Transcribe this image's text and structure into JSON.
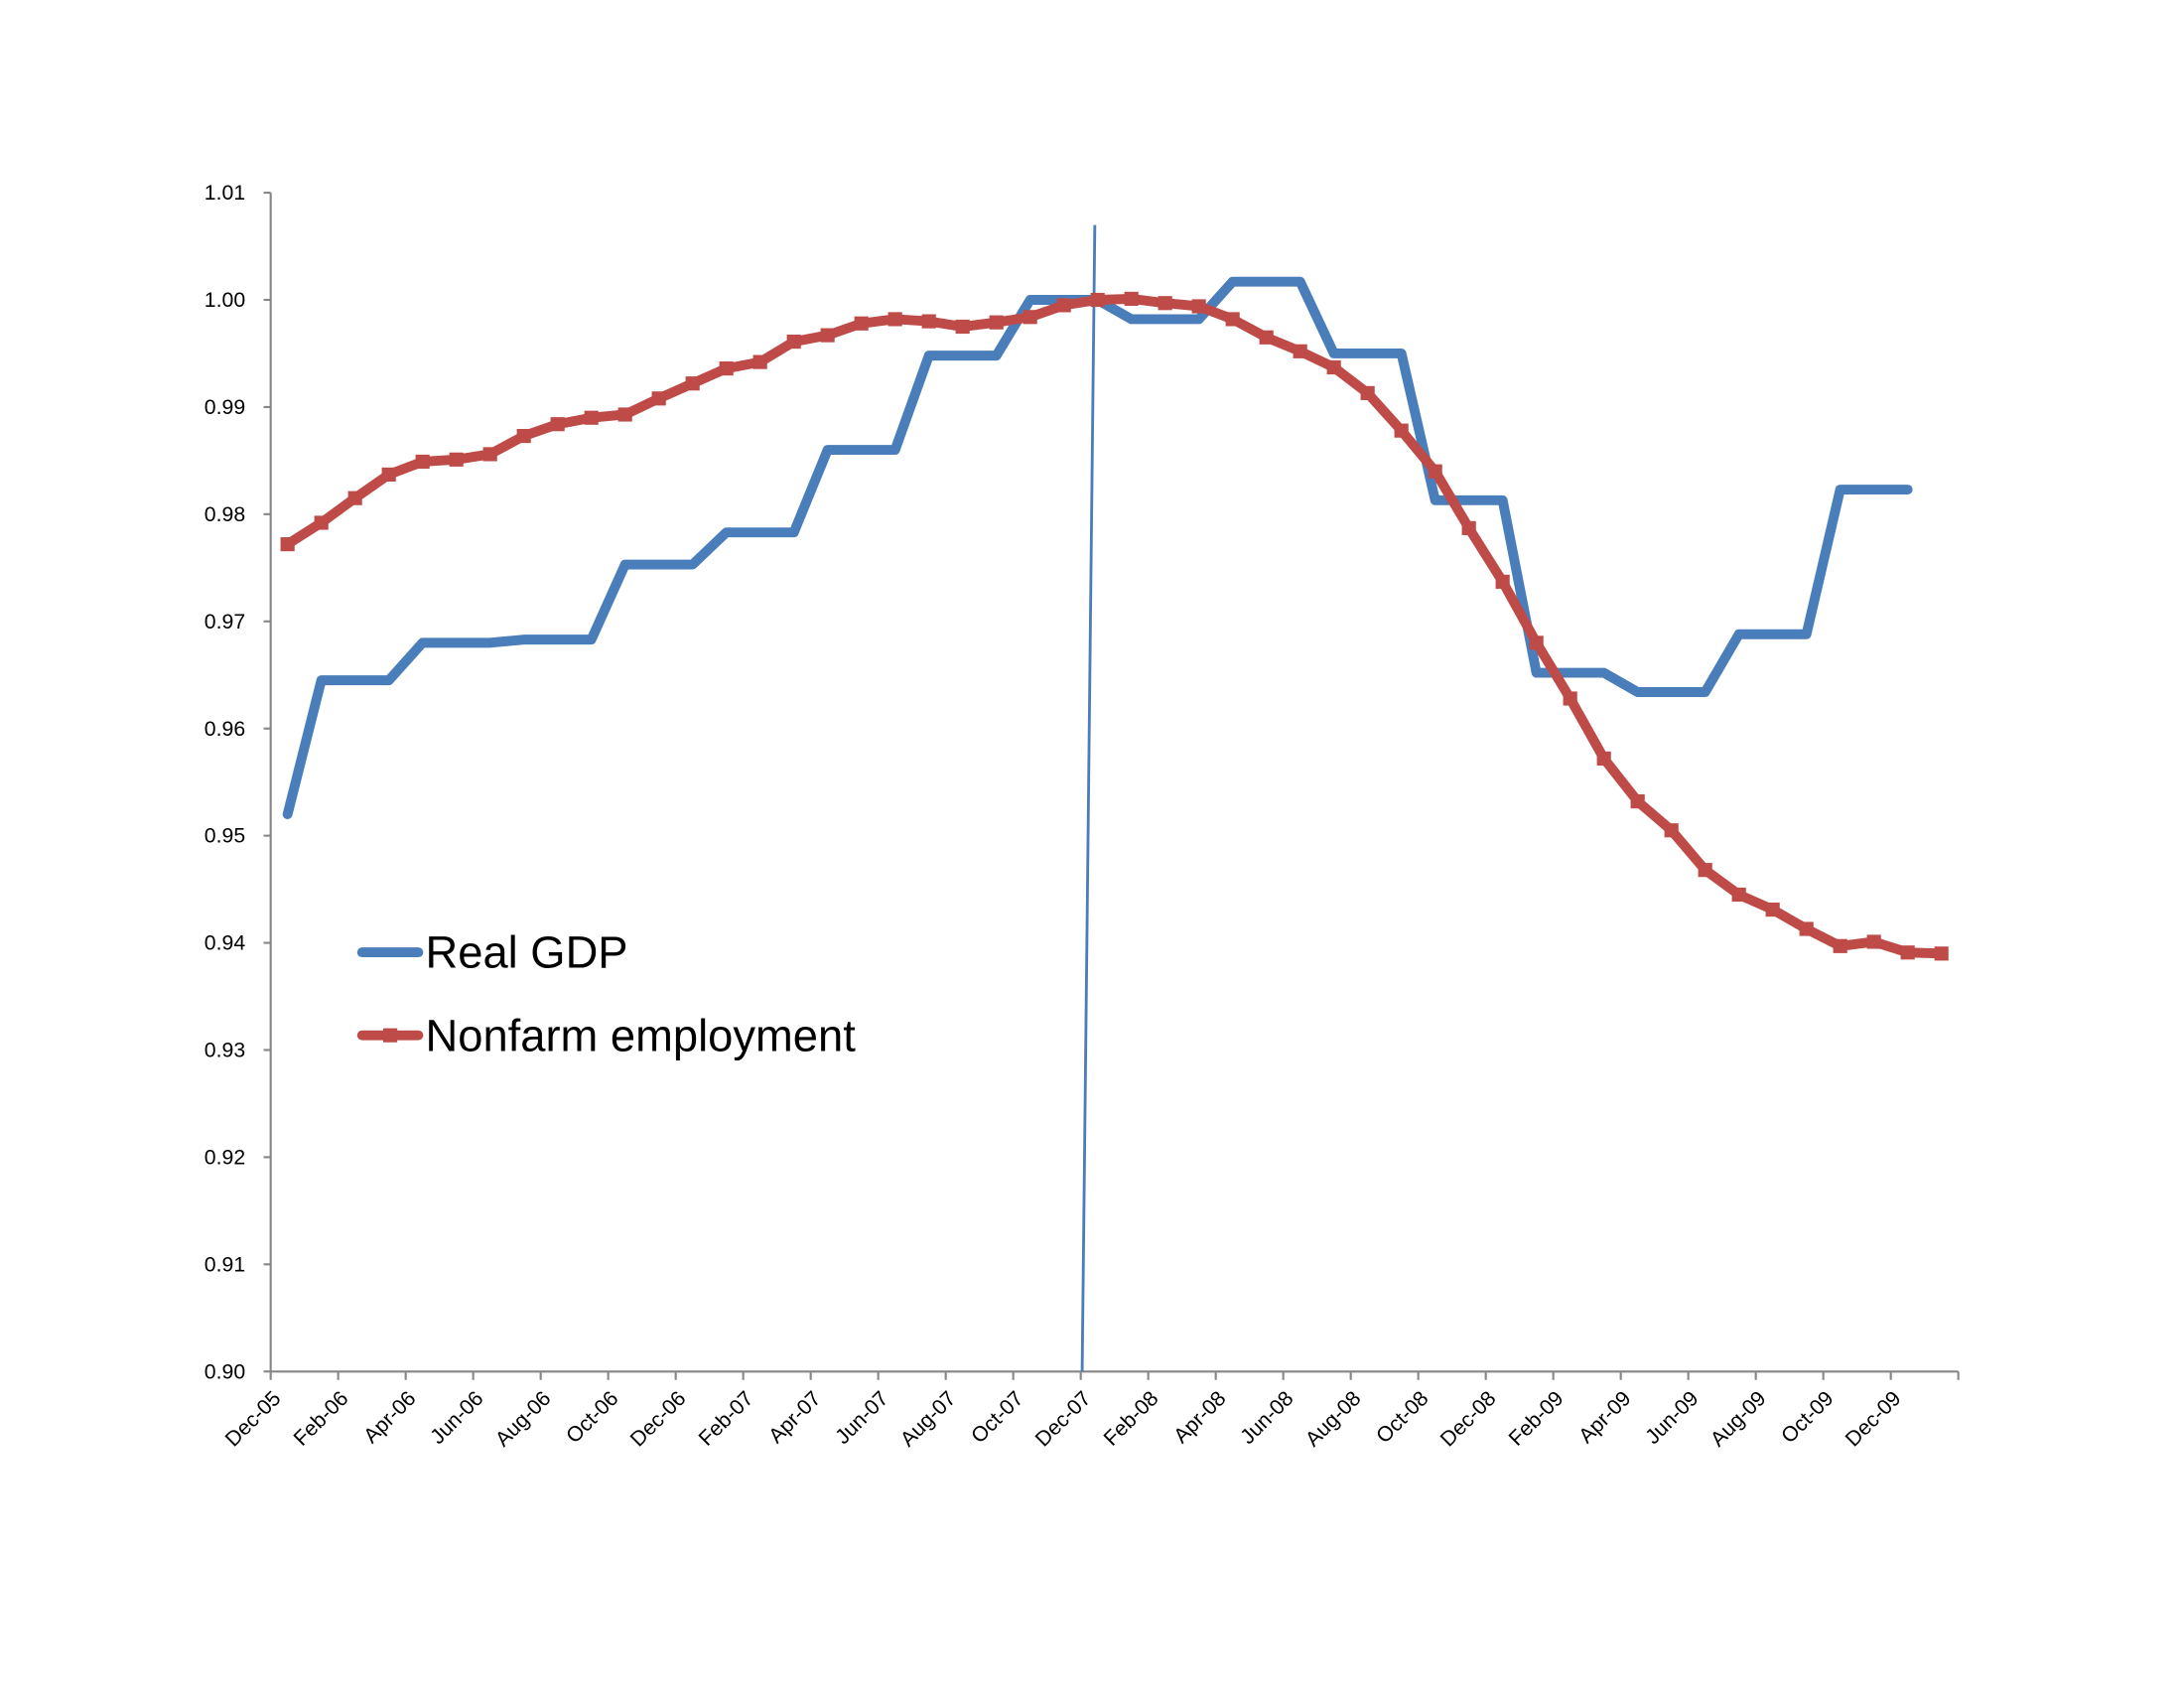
{
  "chart_data": {
    "type": "line",
    "title": "",
    "xlabel": "",
    "ylabel": "",
    "ylim": [
      0.9,
      1.01
    ],
    "yticks": [
      "0.90",
      "0.91",
      "0.92",
      "0.93",
      "0.94",
      "0.95",
      "0.96",
      "0.97",
      "0.98",
      "0.99",
      "1.00",
      "1.01"
    ],
    "xtick_labels": [
      "Dec-05",
      "Feb-06",
      "Apr-06",
      "Jun-06",
      "Aug-06",
      "Oct-06",
      "Dec-06",
      "Feb-07",
      "Apr-07",
      "Jun-07",
      "Aug-07",
      "Oct-07",
      "Dec-07",
      "Feb-08",
      "Apr-08",
      "Jun-08",
      "Aug-08",
      "Oct-08",
      "Dec-08",
      "Feb-09",
      "Apr-09",
      "Jun-09",
      "Aug-09",
      "Oct-09",
      "Dec-09"
    ],
    "x": [
      "Dec-05",
      "Jan-06",
      "Feb-06",
      "Mar-06",
      "Apr-06",
      "May-06",
      "Jun-06",
      "Jul-06",
      "Aug-06",
      "Sep-06",
      "Oct-06",
      "Nov-06",
      "Dec-06",
      "Jan-07",
      "Feb-07",
      "Mar-07",
      "Apr-07",
      "May-07",
      "Jun-07",
      "Jul-07",
      "Aug-07",
      "Sep-07",
      "Oct-07",
      "Nov-07",
      "Dec-07",
      "Jan-08",
      "Feb-08",
      "Mar-08",
      "Apr-08",
      "May-08",
      "Jun-08",
      "Jul-08",
      "Aug-08",
      "Sep-08",
      "Oct-08",
      "Nov-08",
      "Dec-08",
      "Jan-09",
      "Feb-09",
      "Mar-09",
      "Apr-09",
      "May-09",
      "Jun-09",
      "Jul-09",
      "Aug-09",
      "Sep-09",
      "Oct-09",
      "Nov-09",
      "Dec-09",
      "Jan-10"
    ],
    "series": [
      {
        "name": "Real GDP",
        "color": "#4a7ebb",
        "marker": "none",
        "values": [
          0.952,
          0.9645,
          0.9645,
          0.9645,
          0.968,
          0.968,
          0.968,
          0.9683,
          0.9683,
          0.9683,
          0.9753,
          0.9753,
          0.9753,
          0.9783,
          0.9783,
          0.9783,
          0.986,
          0.986,
          0.986,
          0.9948,
          0.9948,
          0.9948,
          1.0,
          1.0,
          1.0,
          0.9982,
          0.9982,
          0.9982,
          1.0017,
          1.0017,
          1.0017,
          0.995,
          0.995,
          0.995,
          0.9813,
          0.9813,
          0.9813,
          0.9652,
          0.9652,
          0.9652,
          0.9634,
          0.9634,
          0.9634,
          0.9688,
          0.9688,
          0.9688,
          0.9823,
          0.9823,
          0.9823,
          null
        ]
      },
      {
        "name": "Nonfarm employment",
        "color": "#be4b48",
        "marker": "square",
        "values": [
          0.9772,
          0.9792,
          0.9815,
          0.9837,
          0.9849,
          0.9851,
          0.9856,
          0.9873,
          0.9884,
          0.989,
          0.9893,
          0.9908,
          0.9922,
          0.9936,
          0.9942,
          0.9961,
          0.9967,
          0.9978,
          0.9982,
          0.998,
          0.9975,
          0.9979,
          0.9984,
          0.9995,
          1.0,
          1.0001,
          0.9997,
          0.9994,
          0.9982,
          0.9965,
          0.9952,
          0.9937,
          0.9913,
          0.9878,
          0.984,
          0.9787,
          0.9737,
          0.968,
          0.9628,
          0.9572,
          0.9532,
          0.9505,
          0.9468,
          0.9445,
          0.9431,
          0.9413,
          0.9397,
          0.9401,
          0.9391,
          0.939
        ]
      }
    ],
    "reference_line": {
      "at": "Dec-07",
      "color": "#4a7ebb"
    },
    "grid": false,
    "legend_placement": "left-middle",
    "axis_color": "#868686"
  }
}
